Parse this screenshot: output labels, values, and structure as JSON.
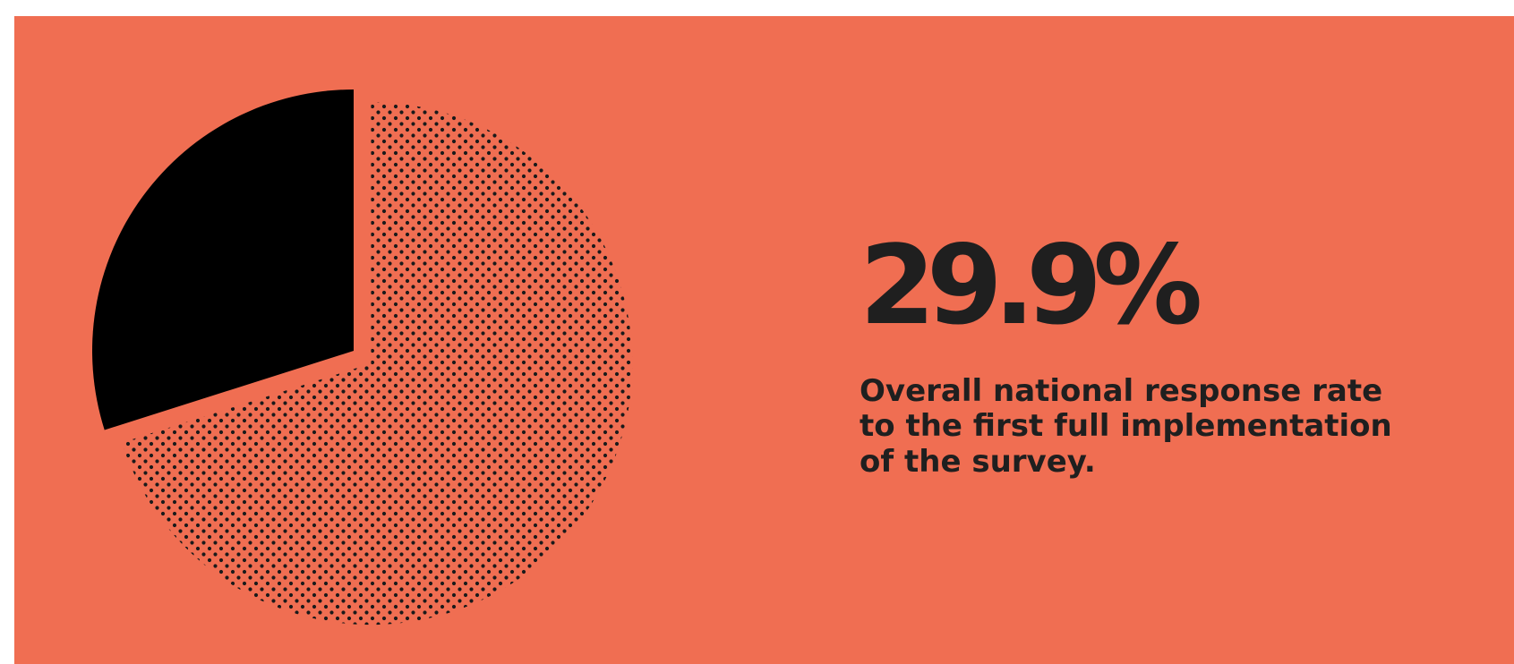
{
  "colors": {
    "background": "#F06E52",
    "response_slice": "#000000",
    "remainder_dots": "#1a1a1a",
    "text": "#1f1f1f"
  },
  "stat": {
    "value": "29.9%",
    "description_lines": [
      "Overall national response rate",
      "to the first full implementation",
      "of the survey."
    ]
  },
  "chart_data": {
    "type": "pie",
    "slices": [
      {
        "value": 29.9,
        "fill": "solid"
      },
      {
        "value": 70.1,
        "fill": "dotted",
        "exploded": true
      }
    ],
    "title": "",
    "legend": "none"
  }
}
